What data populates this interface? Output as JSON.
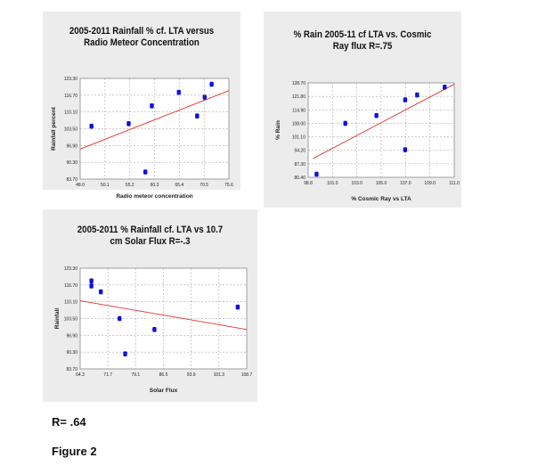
{
  "charts": [
    {
      "title": "2005-2011 Rainfall % cf. LTA versus Radio Meteor Concentration",
      "xlabel": "Radio meteor concentration",
      "ylabel": "Rainfall percent",
      "xticks": [
        "48.0",
        "50.1",
        "55.2",
        "60.3",
        "65.4",
        "70.5",
        "75.6"
      ],
      "yticks": [
        "123.30",
        "116.70",
        "110.10",
        "103.50",
        "96.90",
        "90.30",
        "83.70"
      ]
    },
    {
      "title": "% Rain 2005-11 cf LTA vs. Cosmic Ray flux R=.75",
      "xlabel": "% Cosmic Ray vs LTA",
      "ylabel": "% Rain",
      "xticks": [
        "98.8",
        "101.0",
        "103.0",
        "105.0",
        "107.0",
        "109.0",
        "111.0"
      ],
      "yticks": [
        "128.70",
        "121.80",
        "114.90",
        "108.00",
        "101.10",
        "94.20",
        "87.30",
        "80.40"
      ]
    },
    {
      "title": "2005-2011 % Rainfall cf. LTA vs 10.7 cm Solar Flux R=-.3",
      "xlabel": "Solar Flux",
      "ylabel": "Rainfall",
      "xticks": [
        "64.3",
        "71.7",
        "79.1",
        "86.5",
        "93.9",
        "101.3",
        "108.7"
      ],
      "yticks": [
        "123.30",
        "116.70",
        "110.10",
        "103.50",
        "96.90",
        "90.30",
        "83.70"
      ]
    }
  ],
  "chart_data": [
    {
      "type": "scatter",
      "title": "2005-2011 Rainfall % cf. LTA versus Radio Meteor Concentration",
      "xlabel": "Radio meteor concentration",
      "ylabel": "Rainfall percent",
      "xlim": [
        48.0,
        75.6
      ],
      "ylim": [
        83.7,
        123.3
      ],
      "points": [
        [
          50.1,
          104.5
        ],
        [
          57.0,
          105.5
        ],
        [
          61.3,
          112.5
        ],
        [
          60.1,
          86.5
        ],
        [
          66.3,
          117.8
        ],
        [
          69.7,
          108.5
        ],
        [
          71.1,
          115.9
        ],
        [
          72.4,
          121.0
        ]
      ],
      "trendline": [
        [
          48.0,
          95.5
        ],
        [
          75.6,
          118.5
        ]
      ],
      "point_color": "#1010e0",
      "line_color": "#e03030"
    },
    {
      "type": "scatter",
      "title": "% Rain 2005-11 cf LTA vs. Cosmic Ray flux R=.75",
      "xlabel": "% Cosmic Ray vs LTA",
      "ylabel": "% Rain",
      "xlim": [
        98.8,
        111.0
      ],
      "ylim": [
        80.4,
        128.7
      ],
      "points": [
        [
          99.5,
          82.0
        ],
        [
          101.9,
          108.0
        ],
        [
          104.5,
          112.0
        ],
        [
          106.9,
          120.0
        ],
        [
          106.9,
          94.5
        ],
        [
          107.9,
          122.5
        ],
        [
          110.2,
          126.5
        ]
      ],
      "trendline": [
        [
          99.2,
          90.0
        ],
        [
          111.0,
          128.0
        ]
      ],
      "point_color": "#1010e0",
      "line_color": "#e03030"
    },
    {
      "type": "scatter",
      "title": "2005-2011 % Rainfall cf. LTA vs 10.7 cm Solar Flux R=-.3",
      "xlabel": "Solar Flux",
      "ylabel": "Rainfall",
      "xlim": [
        64.3,
        108.7
      ],
      "ylim": [
        83.7,
        123.3
      ],
      "points": [
        [
          67.3,
          118.3
        ],
        [
          67.3,
          116.3
        ],
        [
          69.8,
          114.0
        ],
        [
          74.8,
          103.5
        ],
        [
          76.3,
          89.6
        ],
        [
          84.1,
          99.2
        ],
        [
          106.3,
          108.0
        ]
      ],
      "trendline": [
        [
          64.3,
          110.5
        ],
        [
          108.7,
          99.2
        ]
      ],
      "point_color": "#1010e0",
      "line_color": "#e03030"
    }
  ],
  "caption": {
    "r_value": "R= .64",
    "figure": "Figure 2"
  }
}
